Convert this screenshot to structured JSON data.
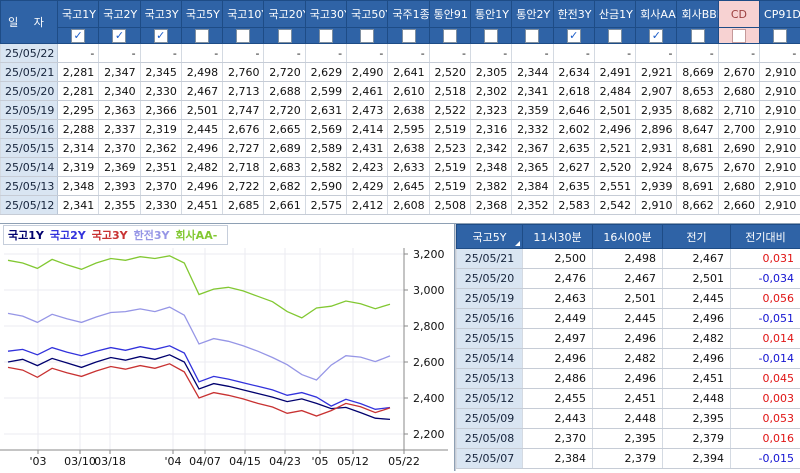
{
  "colors": {
    "header_bg": "#2f63a6",
    "header_border": "#1e4c86",
    "date_cell_bg": "#d9e5f2",
    "cd_header_bg": "#f7d2d2",
    "cd_header_text": "#9c4040",
    "diff_positive": "#e01414",
    "diff_negative": "#1414d2",
    "grid_line": "#ebebf2",
    "axis_line": "#8a8a8a"
  },
  "icons": {
    "check_glyph": "✓",
    "dash": "-",
    "sort_indicator": "triangle-bottom-right"
  },
  "top_table": {
    "date_header": "일 자",
    "columns": [
      {
        "label": "국고1Y",
        "checked": true
      },
      {
        "label": "국고2Y",
        "checked": true
      },
      {
        "label": "국고3Y",
        "checked": true
      },
      {
        "label": "국고5Y",
        "checked": false
      },
      {
        "label": "국고10Y",
        "checked": false
      },
      {
        "label": "국고20Y",
        "checked": false
      },
      {
        "label": "국고30Y",
        "checked": false
      },
      {
        "label": "국고50Y",
        "checked": false
      },
      {
        "label": "국주1종",
        "checked": false
      },
      {
        "label": "통안91",
        "checked": false
      },
      {
        "label": "통안1Y",
        "checked": false
      },
      {
        "label": "통안2Y",
        "checked": false
      },
      {
        "label": "한전3Y",
        "checked": true
      },
      {
        "label": "산금1Y",
        "checked": false
      },
      {
        "label": "회사AA-",
        "checked": true
      },
      {
        "label": "회사BBB-",
        "checked": false
      },
      {
        "label": "CD",
        "checked": false,
        "special": true
      },
      {
        "label": "CP91D",
        "checked": false
      }
    ],
    "rows": [
      {
        "date": "25/05/22",
        "values": [
          "-",
          "-",
          "-",
          "-",
          "-",
          "-",
          "-",
          "-",
          "-",
          "-",
          "-",
          "-",
          "-",
          "-",
          "-",
          "-",
          "-",
          "-"
        ]
      },
      {
        "date": "25/05/21",
        "values": [
          "2,281",
          "2,347",
          "2,345",
          "2,498",
          "2,760",
          "2,720",
          "2,629",
          "2,490",
          "2,641",
          "2,520",
          "2,305",
          "2,344",
          "2,634",
          "2,491",
          "2,921",
          "8,669",
          "2,670",
          "2,910"
        ]
      },
      {
        "date": "25/05/20",
        "values": [
          "2,281",
          "2,340",
          "2,330",
          "2,467",
          "2,713",
          "2,688",
          "2,599",
          "2,461",
          "2,610",
          "2,518",
          "2,302",
          "2,341",
          "2,618",
          "2,484",
          "2,907",
          "8,653",
          "2,680",
          "2,910"
        ]
      },
      {
        "date": "25/05/19",
        "values": [
          "2,295",
          "2,363",
          "2,366",
          "2,501",
          "2,747",
          "2,720",
          "2,631",
          "2,473",
          "2,638",
          "2,522",
          "2,323",
          "2,359",
          "2,646",
          "2,501",
          "2,935",
          "8,682",
          "2,710",
          "2,910"
        ]
      },
      {
        "date": "25/05/16",
        "values": [
          "2,288",
          "2,337",
          "2,319",
          "2,445",
          "2,676",
          "2,665",
          "2,569",
          "2,414",
          "2,595",
          "2,519",
          "2,316",
          "2,332",
          "2,602",
          "2,496",
          "2,896",
          "8,647",
          "2,700",
          "2,910"
        ]
      },
      {
        "date": "25/05/15",
        "values": [
          "2,314",
          "2,370",
          "2,362",
          "2,496",
          "2,727",
          "2,689",
          "2,589",
          "2,431",
          "2,638",
          "2,523",
          "2,342",
          "2,367",
          "2,635",
          "2,521",
          "2,931",
          "8,681",
          "2,690",
          "2,910"
        ]
      },
      {
        "date": "25/05/14",
        "values": [
          "2,319",
          "2,369",
          "2,351",
          "2,482",
          "2,718",
          "2,683",
          "2,582",
          "2,423",
          "2,633",
          "2,519",
          "2,348",
          "2,365",
          "2,627",
          "2,520",
          "2,924",
          "8,675",
          "2,670",
          "2,910"
        ]
      },
      {
        "date": "25/05/13",
        "values": [
          "2,348",
          "2,393",
          "2,370",
          "2,496",
          "2,722",
          "2,682",
          "2,590",
          "2,429",
          "2,645",
          "2,519",
          "2,382",
          "2,384",
          "2,635",
          "2,551",
          "2,939",
          "8,691",
          "2,680",
          "2,910"
        ]
      },
      {
        "date": "25/05/12",
        "values": [
          "2,341",
          "2,355",
          "2,330",
          "2,451",
          "2,685",
          "2,661",
          "2,575",
          "2,412",
          "2,608",
          "2,508",
          "2,368",
          "2,352",
          "2,583",
          "2,542",
          "2,910",
          "8,662",
          "2,660",
          "2,910"
        ]
      }
    ]
  },
  "chart_data": {
    "type": "line",
    "legend_position": "top-left",
    "y_ticks": [
      {
        "label": "3,200",
        "value": 3.2
      },
      {
        "label": "3,000",
        "value": 3.0
      },
      {
        "label": "2,800",
        "value": 2.8
      },
      {
        "label": "2,600",
        "value": 2.6
      },
      {
        "label": "2,400",
        "value": 2.4
      },
      {
        "label": "2,200",
        "value": 2.2
      }
    ],
    "ylim": [
      2.2,
      3.2
    ],
    "x_ticks": [
      {
        "label": "'03",
        "f": 0.085
      },
      {
        "label": "03/10",
        "f": 0.19
      },
      {
        "label": "03/18",
        "f": 0.265
      },
      {
        "label": "'04",
        "f": 0.4225
      },
      {
        "label": "04/07",
        "f": 0.5025
      },
      {
        "label": "04/15",
        "f": 0.6025
      },
      {
        "label": "04/23",
        "f": 0.7025
      },
      {
        "label": "'05",
        "f": 0.79
      },
      {
        "label": "05/12",
        "f": 0.8725
      },
      {
        "label": "05/22",
        "f": 1.0
      }
    ],
    "grid": true,
    "series": [
      {
        "name": "국고1Y",
        "color": "#00006e",
        "values": [
          2.6,
          2.615,
          2.58,
          2.62,
          2.595,
          2.57,
          2.6,
          2.625,
          2.61,
          2.63,
          2.615,
          2.64,
          2.6,
          2.45,
          2.48,
          2.465,
          2.445,
          2.425,
          2.405,
          2.38,
          2.395,
          2.37,
          2.341,
          2.348,
          2.319,
          2.288,
          2.281
        ]
      },
      {
        "name": "국고2Y",
        "color": "#3232dc",
        "values": [
          2.66,
          2.67,
          2.64,
          2.68,
          2.655,
          2.635,
          2.66,
          2.68,
          2.665,
          2.685,
          2.67,
          2.69,
          2.65,
          2.49,
          2.52,
          2.505,
          2.485,
          2.465,
          2.445,
          2.415,
          2.43,
          2.405,
          2.355,
          2.393,
          2.369,
          2.337,
          2.347
        ]
      },
      {
        "name": "국고3Y",
        "color": "#c83232",
        "values": [
          2.57,
          2.555,
          2.515,
          2.565,
          2.54,
          2.52,
          2.55,
          2.575,
          2.56,
          2.58,
          2.565,
          2.59,
          2.545,
          2.4,
          2.43,
          2.415,
          2.395,
          2.37,
          2.35,
          2.315,
          2.33,
          2.3,
          2.33,
          2.37,
          2.351,
          2.319,
          2.345
        ]
      },
      {
        "name": "한전3Y",
        "color": "#9696e6",
        "values": [
          2.87,
          2.855,
          2.82,
          2.865,
          2.84,
          2.82,
          2.85,
          2.875,
          2.88,
          2.895,
          2.88,
          2.905,
          2.86,
          2.7,
          2.73,
          2.715,
          2.69,
          2.66,
          2.625,
          2.585,
          2.53,
          2.5,
          2.583,
          2.635,
          2.627,
          2.602,
          2.634
        ]
      },
      {
        "name": "회사AA-",
        "color": "#82c832",
        "values": [
          3.165,
          3.15,
          3.12,
          3.17,
          3.14,
          3.115,
          3.15,
          3.175,
          3.165,
          3.185,
          3.175,
          3.19,
          3.15,
          2.975,
          3.005,
          3.015,
          2.995,
          2.965,
          2.935,
          2.88,
          2.845,
          2.9,
          2.91,
          2.939,
          2.924,
          2.896,
          2.921
        ]
      }
    ]
  },
  "right_table": {
    "headers": [
      "국고5Y",
      "11시30분",
      "16시00분",
      "전기",
      "전기대비"
    ],
    "rows": [
      [
        "25/05/21",
        "2,500",
        "2,498",
        "2,467",
        "0,031"
      ],
      [
        "25/05/20",
        "2,476",
        "2,467",
        "2,501",
        "-0,034"
      ],
      [
        "25/05/19",
        "2,463",
        "2,501",
        "2,445",
        "0,056"
      ],
      [
        "25/05/16",
        "2,449",
        "2,445",
        "2,496",
        "-0,051"
      ],
      [
        "25/05/15",
        "2,497",
        "2,496",
        "2,482",
        "0,014"
      ],
      [
        "25/05/14",
        "2,496",
        "2,482",
        "2,496",
        "-0,014"
      ],
      [
        "25/05/13",
        "2,486",
        "2,496",
        "2,451",
        "0,045"
      ],
      [
        "25/05/12",
        "2,455",
        "2,451",
        "2,448",
        "0,003"
      ],
      [
        "25/05/09",
        "2,443",
        "2,448",
        "2,395",
        "0,053"
      ],
      [
        "25/05/08",
        "2,370",
        "2,395",
        "2,379",
        "0,016"
      ],
      [
        "25/05/07",
        "2,384",
        "2,379",
        "2,394",
        "-0,015"
      ]
    ]
  }
}
